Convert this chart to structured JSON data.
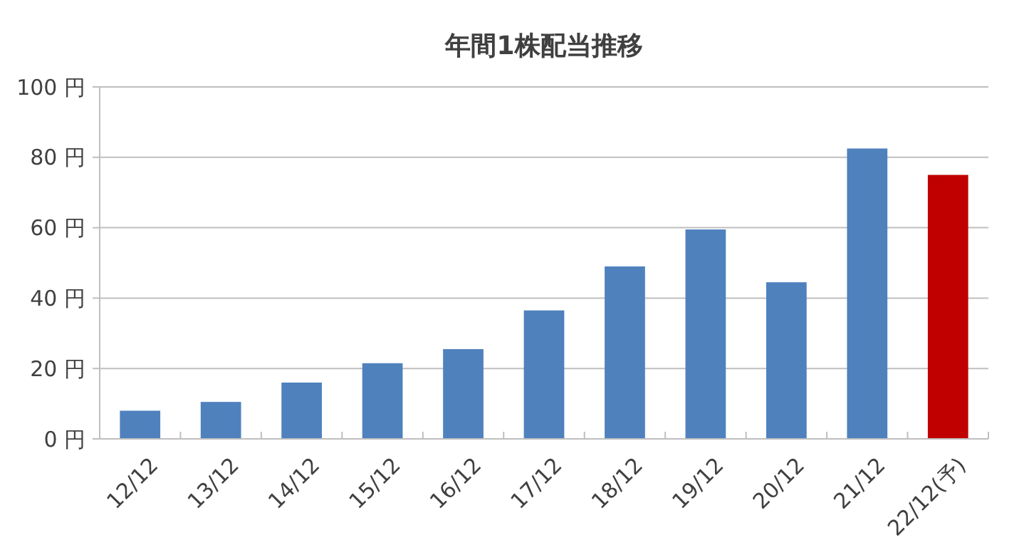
{
  "chart_data": {
    "type": "bar",
    "title": "年間1株配当推移",
    "categories": [
      "12/12",
      "13/12",
      "14/12",
      "15/12",
      "16/12",
      "17/12",
      "18/12",
      "19/12",
      "20/12",
      "21/12",
      "22/12(予)"
    ],
    "values": [
      8,
      10.5,
      16,
      21.5,
      25.5,
      36.5,
      49,
      59.5,
      44.5,
      82.5,
      75
    ],
    "colors": [
      "#4f81bd",
      "#4f81bd",
      "#4f81bd",
      "#4f81bd",
      "#4f81bd",
      "#4f81bd",
      "#4f81bd",
      "#4f81bd",
      "#4f81bd",
      "#4f81bd",
      "#c00000"
    ],
    "ylim": [
      0,
      100
    ],
    "yticks": [
      {
        "value": 0,
        "label": "0 円"
      },
      {
        "value": 20,
        "label": "20 円"
      },
      {
        "value": 40,
        "label": "40 円"
      },
      {
        "value": 60,
        "label": "60 円"
      },
      {
        "value": 80,
        "label": "80 円"
      },
      {
        "value": 100,
        "label": "100 円"
      }
    ],
    "grid": "y"
  }
}
